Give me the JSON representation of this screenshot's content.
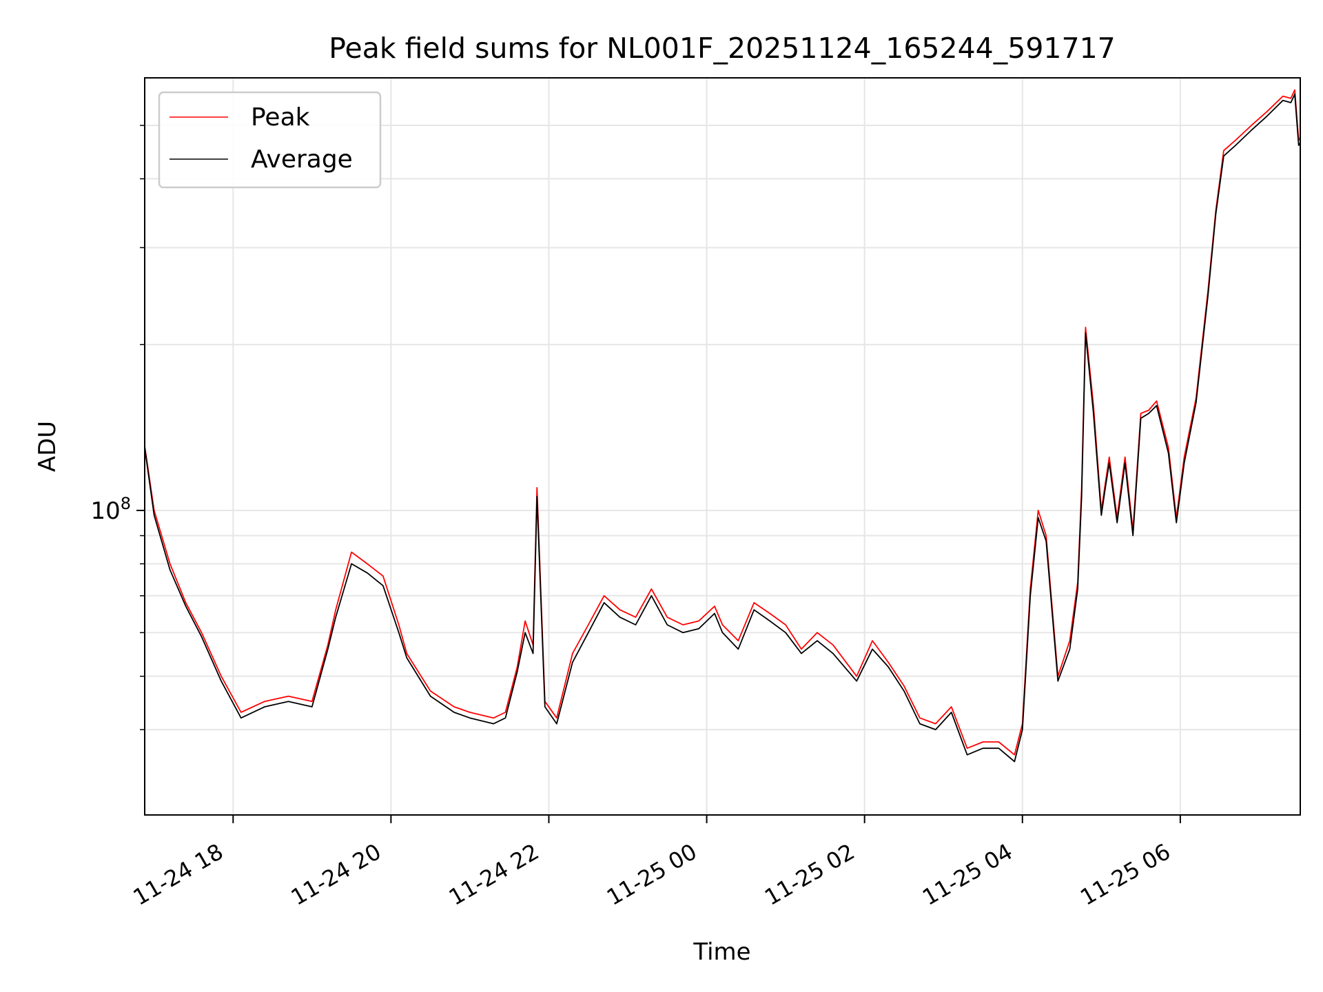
{
  "chart_data": {
    "type": "line",
    "title": "Peak field sums for NL001F_20251124_165244_591717",
    "xlabel": "Time",
    "ylabel": "ADU",
    "yscale": "log",
    "grid": true,
    "legend_position": "top-left",
    "x_range_hours": [
      16.88,
      7.52
    ],
    "ylim": [
      28000000,
      610000000
    ],
    "x_ticks": [
      {
        "hour": 18,
        "label": "11-24 18"
      },
      {
        "hour": 20,
        "label": "11-24 20"
      },
      {
        "hour": 22,
        "label": "11-24 22"
      },
      {
        "hour": 24,
        "label": "11-25 00"
      },
      {
        "hour": 26,
        "label": "11-25 02"
      },
      {
        "hour": 28,
        "label": "11-25 04"
      },
      {
        "hour": 30,
        "label": "11-25 06"
      }
    ],
    "y_major_ticks": [
      {
        "value": 100000000,
        "base": "10",
        "exp": "8"
      }
    ],
    "y_minor_ticks": [
      40000000,
      50000000,
      60000000,
      70000000,
      80000000,
      90000000,
      200000000,
      300000000,
      400000000,
      500000000
    ],
    "x_hours_after_midnight_11_24": [
      16.88,
      17.0,
      17.2,
      17.4,
      17.6,
      17.85,
      18.1,
      18.4,
      18.7,
      19.0,
      19.2,
      19.3,
      19.5,
      19.7,
      19.9,
      20.1,
      20.2,
      20.5,
      20.8,
      21.0,
      21.3,
      21.45,
      21.6,
      21.7,
      21.8,
      21.85,
      21.95,
      22.1,
      22.3,
      22.5,
      22.7,
      22.9,
      23.1,
      23.3,
      23.5,
      23.7,
      23.9,
      24.1,
      24.2,
      24.4,
      24.6,
      24.8,
      25.0,
      25.2,
      25.4,
      25.6,
      25.9,
      26.1,
      26.3,
      26.5,
      26.7,
      26.9,
      27.1,
      27.3,
      27.5,
      27.7,
      27.9,
      28.0,
      28.1,
      28.2,
      28.3,
      28.45,
      28.6,
      28.7,
      28.75,
      28.8,
      28.9,
      29.0,
      29.05,
      29.1,
      29.2,
      29.3,
      29.4,
      29.5,
      29.6,
      29.7,
      29.85,
      29.95,
      30.05,
      30.2,
      30.35,
      30.45,
      30.55,
      30.7,
      30.9,
      31.1,
      31.3,
      31.4,
      31.45,
      31.5,
      31.52
    ],
    "series": [
      {
        "name": "Peak",
        "color": "#ff0000",
        "values": [
          131000000,
          100000000,
          80000000,
          68000000,
          60000000,
          50000000,
          43000000,
          45000000,
          46000000,
          45000000,
          57000000,
          66000000,
          84000000,
          80000000,
          76000000,
          62000000,
          55000000,
          47000000,
          44000000,
          43000000,
          42000000,
          43000000,
          52000000,
          63000000,
          57000000,
          110000000,
          45000000,
          42000000,
          55000000,
          62000000,
          70000000,
          66000000,
          64000000,
          72000000,
          64000000,
          62000000,
          63000000,
          67000000,
          62000000,
          58000000,
          68000000,
          65000000,
          62000000,
          56000000,
          60000000,
          57000000,
          50000000,
          58000000,
          53000000,
          48000000,
          42000000,
          41000000,
          44000000,
          37000000,
          38000000,
          38000000,
          36000000,
          41000000,
          72000000,
          100000000,
          90000000,
          50000000,
          58000000,
          74000000,
          110000000,
          215000000,
          155000000,
          100000000,
          112000000,
          125000000,
          97000000,
          125000000,
          92000000,
          150000000,
          152000000,
          158000000,
          130000000,
          97000000,
          125000000,
          160000000,
          250000000,
          350000000,
          450000000,
          470000000,
          500000000,
          530000000,
          565000000,
          560000000,
          580000000,
          470000000,
          475000000
        ]
      },
      {
        "name": "Average",
        "color": "#000000",
        "values": [
          130000000,
          98000000,
          78000000,
          67000000,
          59000000,
          49000000,
          42000000,
          44000000,
          45000000,
          44000000,
          56000000,
          64000000,
          80000000,
          77000000,
          73000000,
          60000000,
          54000000,
          46000000,
          43000000,
          42000000,
          41000000,
          42000000,
          51000000,
          60000000,
          55000000,
          106000000,
          44000000,
          41000000,
          53000000,
          60000000,
          68000000,
          64000000,
          62000000,
          70000000,
          62000000,
          60000000,
          61000000,
          65000000,
          60000000,
          56000000,
          66000000,
          63000000,
          60000000,
          55000000,
          58000000,
          55000000,
          49000000,
          56000000,
          52000000,
          47000000,
          41000000,
          40000000,
          43000000,
          36000000,
          37000000,
          37000000,
          35000000,
          40000000,
          70000000,
          97000000,
          88000000,
          49000000,
          56000000,
          72000000,
          106000000,
          210000000,
          150000000,
          98000000,
          110000000,
          122000000,
          95000000,
          122000000,
          90000000,
          147000000,
          150000000,
          155000000,
          127000000,
          95000000,
          122000000,
          157000000,
          245000000,
          345000000,
          440000000,
          460000000,
          490000000,
          520000000,
          555000000,
          550000000,
          570000000,
          460000000,
          465000000
        ]
      }
    ]
  }
}
